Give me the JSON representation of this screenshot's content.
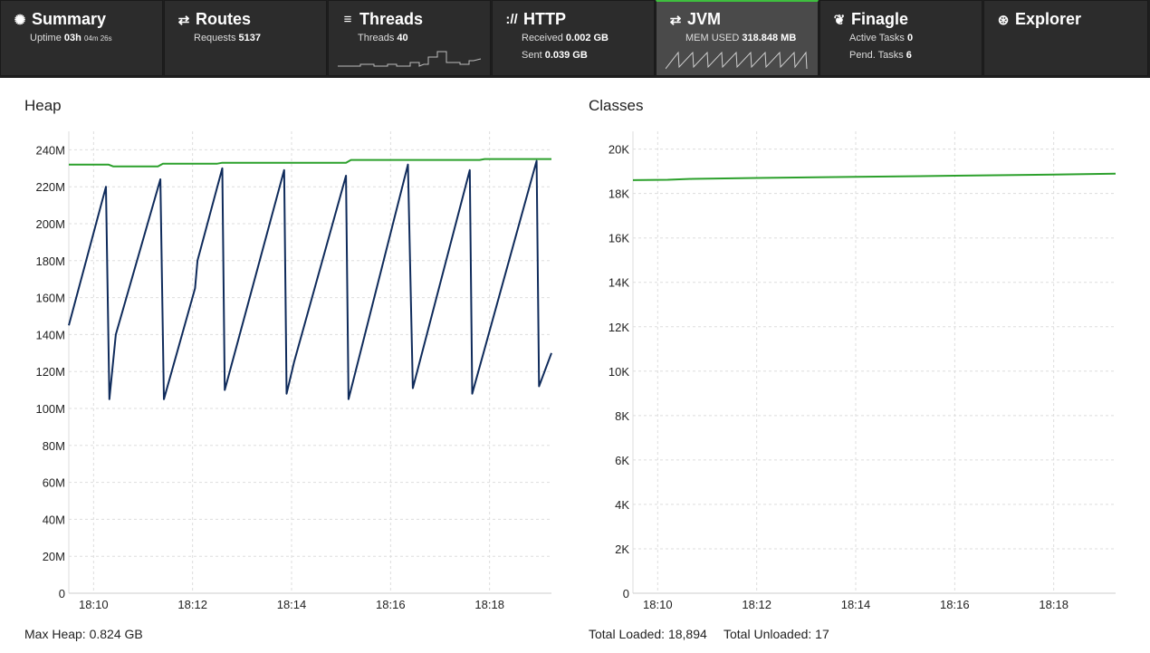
{
  "nav": {
    "tabs": [
      {
        "id": "summary",
        "title": "Summary",
        "icon": "summary-icon",
        "stats": [
          {
            "label": "Uptime",
            "value": "03h",
            "extra": "04m 26s"
          }
        ]
      },
      {
        "id": "routes",
        "title": "Routes",
        "icon": "routes-icon",
        "stats": [
          {
            "label": "Requests",
            "value": "5137"
          }
        ]
      },
      {
        "id": "threads",
        "title": "Threads",
        "icon": "threads-icon",
        "stats": [
          {
            "label": "Threads",
            "value": "40"
          }
        ]
      },
      {
        "id": "http",
        "title": "HTTP",
        "icon": "http-icon",
        "stats": [
          {
            "label": "Received",
            "value": "0.002 GB"
          },
          {
            "label": "Sent",
            "value": "0.039 GB"
          }
        ]
      },
      {
        "id": "jvm",
        "title": "JVM",
        "icon": "jvm-icon",
        "active": true,
        "stats": [
          {
            "label": "MEM USED",
            "value": "318.848 MB"
          }
        ]
      },
      {
        "id": "finagle",
        "title": "Finagle",
        "icon": "finagle-icon",
        "stats": [
          {
            "label": "Active Tasks",
            "value": "0"
          },
          {
            "label": "Pend. Tasks",
            "value": "6"
          }
        ]
      },
      {
        "id": "explorer",
        "title": "Explorer",
        "icon": "explorer-icon",
        "stats": []
      }
    ],
    "accent": "#3fbf3f"
  },
  "heap": {
    "title": "Heap",
    "footer": "Max Heap: 0.824 GB"
  },
  "classes": {
    "title": "Classes",
    "footer_loaded": "Total Loaded: 18,894",
    "footer_unloaded": "Total Unloaded: 17"
  },
  "chart_data": [
    {
      "type": "line",
      "id": "heap",
      "xlabels": [
        "18:10",
        "18:12",
        "18:14",
        "18:16",
        "18:18"
      ],
      "x_ticks_minutes": [
        10,
        12,
        14,
        16,
        18
      ],
      "xlim_minutes": [
        9.5,
        19.25
      ],
      "ylim": [
        0,
        250
      ],
      "y_ticks": [
        0,
        20,
        40,
        60,
        80,
        100,
        120,
        140,
        160,
        180,
        200,
        220,
        240
      ],
      "y_tick_labels": [
        "0",
        "20M",
        "40M",
        "60M",
        "80M",
        "100M",
        "120M",
        "140M",
        "160M",
        "180M",
        "200M",
        "220M",
        "240M"
      ],
      "grid": true,
      "series": [
        {
          "color": "#2ca02c",
          "x": [
            9.5,
            10.3,
            10.4,
            11.3,
            11.4,
            12.5,
            12.6,
            15.1,
            15.2,
            17.8,
            17.9,
            19.25
          ],
          "y": [
            232,
            232,
            231,
            231,
            232.5,
            232.5,
            233,
            233,
            234.5,
            234.5,
            235,
            235
          ]
        },
        {
          "color": "#0f2b5b",
          "x": [
            9.5,
            10.25,
            10.32,
            10.45,
            11.35,
            11.42,
            12.05,
            12.1,
            12.6,
            12.65,
            13.85,
            13.9,
            14.05,
            15.1,
            15.15,
            16.35,
            16.45,
            17.6,
            17.65,
            18.95,
            19.0,
            19.25
          ],
          "y": [
            145,
            220,
            105,
            140,
            224,
            105,
            165,
            180,
            230,
            110,
            229,
            108,
            125,
            226,
            105,
            232,
            111,
            229,
            108,
            234,
            112,
            130
          ]
        }
      ]
    },
    {
      "type": "line",
      "id": "classes",
      "xlabels": [
        "18:10",
        "18:12",
        "18:14",
        "18:16",
        "18:18"
      ],
      "x_ticks_minutes": [
        10,
        12,
        14,
        16,
        18
      ],
      "xlim_minutes": [
        9.5,
        19.25
      ],
      "ylim": [
        0,
        20800
      ],
      "y_ticks": [
        0,
        2000,
        4000,
        6000,
        8000,
        10000,
        12000,
        14000,
        16000,
        18000,
        20000
      ],
      "y_tick_labels": [
        "0",
        "2K",
        "4K",
        "6K",
        "8K",
        "10K",
        "12K",
        "14K",
        "16K",
        "18K",
        "20K"
      ],
      "grid": true,
      "series": [
        {
          "color": "#2ca02c",
          "x": [
            9.5,
            10.2,
            10.7,
            12.0,
            14.0,
            16.0,
            18.0,
            19.25
          ],
          "y": [
            18600,
            18620,
            18660,
            18700,
            18750,
            18800,
            18850,
            18894
          ]
        }
      ]
    }
  ]
}
